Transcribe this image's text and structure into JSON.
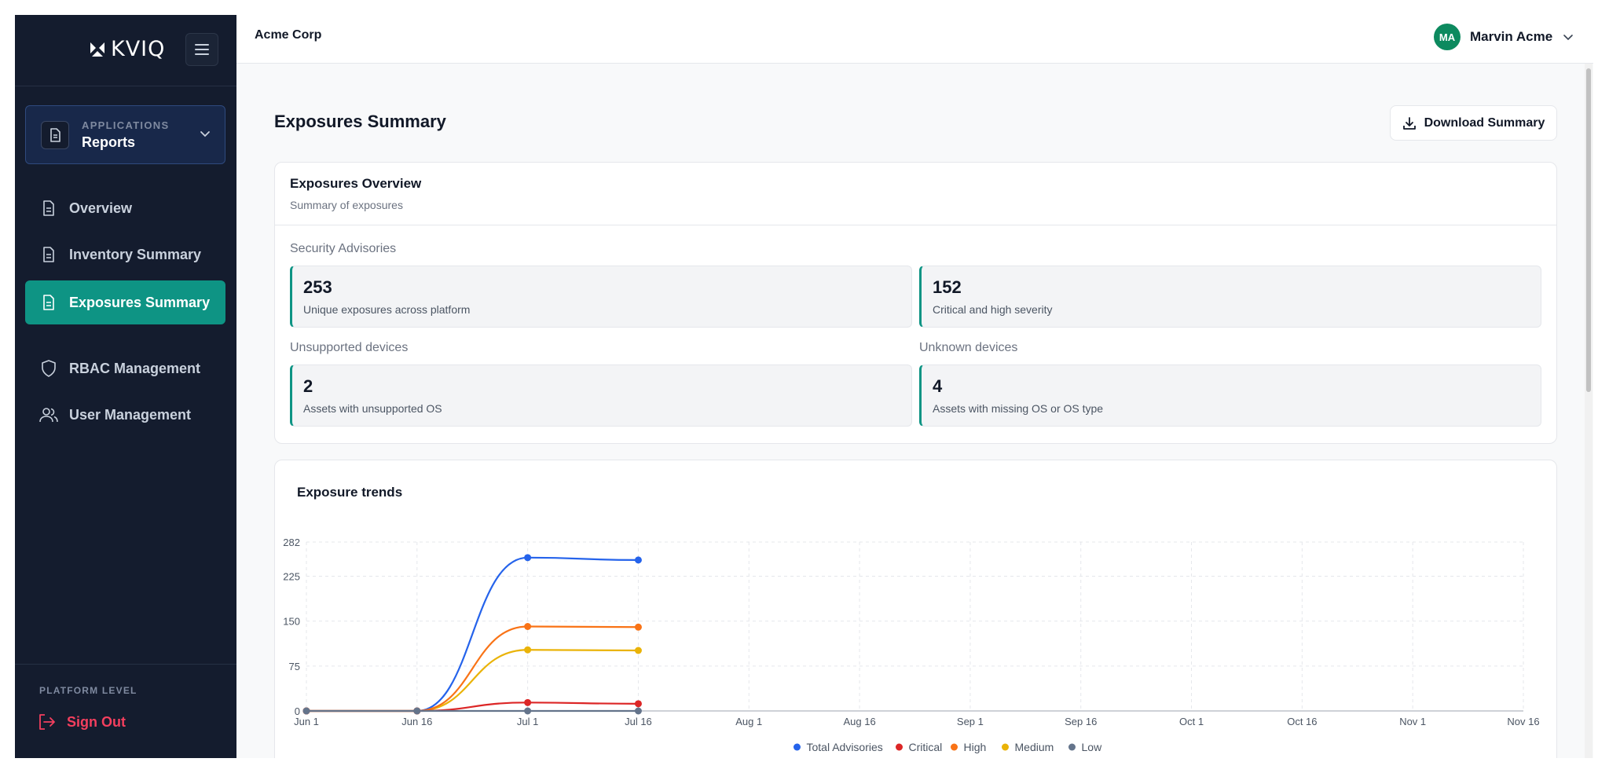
{
  "brand": {
    "logo_text": "KVIQ"
  },
  "app_selector": {
    "caption": "APPLICATIONS",
    "value": "Reports"
  },
  "nav": [
    {
      "label": "Overview",
      "icon": "file-icon",
      "active": false
    },
    {
      "label": "Inventory Summary",
      "icon": "file-icon",
      "active": false
    },
    {
      "label": "Exposures Summary",
      "icon": "file-icon",
      "active": true
    },
    {
      "label": "RBAC Management",
      "icon": "shield-icon",
      "active": false
    },
    {
      "label": "User Management",
      "icon": "users-icon",
      "active": false
    }
  ],
  "sidebar_footer": {
    "caption": "PLATFORM LEVEL",
    "sign_out": "Sign Out"
  },
  "topbar": {
    "org": "Acme Corp",
    "user_initials": "MA",
    "user_name": "Marvin Acme"
  },
  "page": {
    "title": "Exposures Summary",
    "download_label": "Download Summary"
  },
  "overview": {
    "title": "Exposures Overview",
    "subtitle": "Summary of exposures",
    "security_label": "Security Advisories",
    "unsupported_label": "Unsupported devices",
    "unknown_label": "Unknown devices",
    "stats": {
      "unique": {
        "value": "253",
        "desc": "Unique exposures across platform"
      },
      "critical_high": {
        "value": "152",
        "desc": "Critical and high severity"
      },
      "unsupported": {
        "value": "2",
        "desc": "Assets with unsupported OS"
      },
      "unknown": {
        "value": "4",
        "desc": "Assets with missing OS or OS type"
      }
    }
  },
  "colors": {
    "accent": "#0e9484",
    "sidebar_bg": "#141c2e",
    "signout": "#f43f5e"
  },
  "chart_data": {
    "type": "line",
    "title": "Exposure trends",
    "x": [
      "Jun 1",
      "Jun 16",
      "Jul 1",
      "Jul 16"
    ],
    "x_ticks": [
      "Jun 1",
      "Jun 16",
      "Jul 1",
      "Jul 16",
      "Aug 1",
      "Aug 16",
      "Sep 1",
      "Sep 16",
      "Oct 1",
      "Oct 16",
      "Nov 1",
      "Nov 16"
    ],
    "y_ticks": [
      0,
      75,
      150,
      225,
      282
    ],
    "ylim": [
      0,
      282
    ],
    "grid": true,
    "legend_position": "bottom",
    "series": [
      {
        "name": "Total Advisories",
        "color": "#2563eb",
        "values": [
          0,
          0,
          256,
          252
        ]
      },
      {
        "name": "Critical",
        "color": "#dc2626",
        "values": [
          0,
          0,
          14,
          12
        ]
      },
      {
        "name": "High",
        "color": "#f97316",
        "values": [
          0,
          0,
          141,
          140
        ]
      },
      {
        "name": "Medium",
        "color": "#eab308",
        "values": [
          0,
          0,
          102,
          101
        ]
      },
      {
        "name": "Low",
        "color": "#64748b",
        "values": [
          0,
          0,
          0,
          0
        ]
      }
    ]
  }
}
